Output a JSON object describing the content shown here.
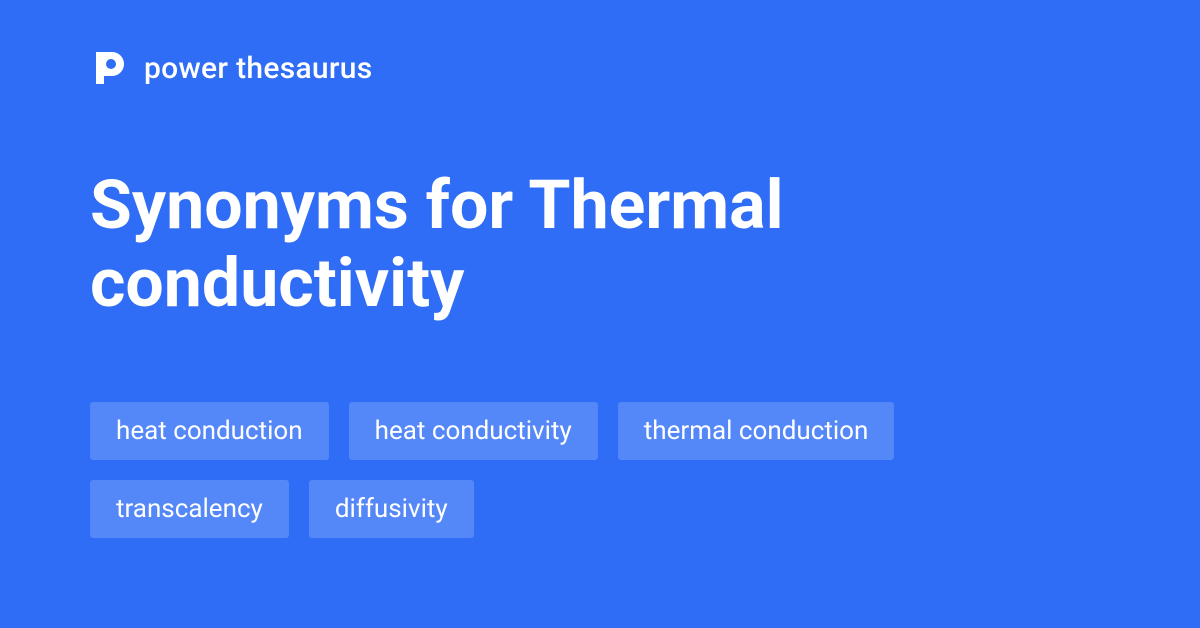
{
  "colors": {
    "background": "#2f6df6",
    "text": "#ffffff",
    "chip_bg": "#5487f8",
    "chip_text": "#ffffff",
    "logo_fill": "#ffffff",
    "logo_hole": "#2f6df6"
  },
  "brand": {
    "name": "power thesaurus"
  },
  "title": "Synonyms for Thermal conductivity",
  "chips": [
    "heat conduction",
    "heat conductivity",
    "thermal conduction",
    "transcalency",
    "diffusivity"
  ]
}
